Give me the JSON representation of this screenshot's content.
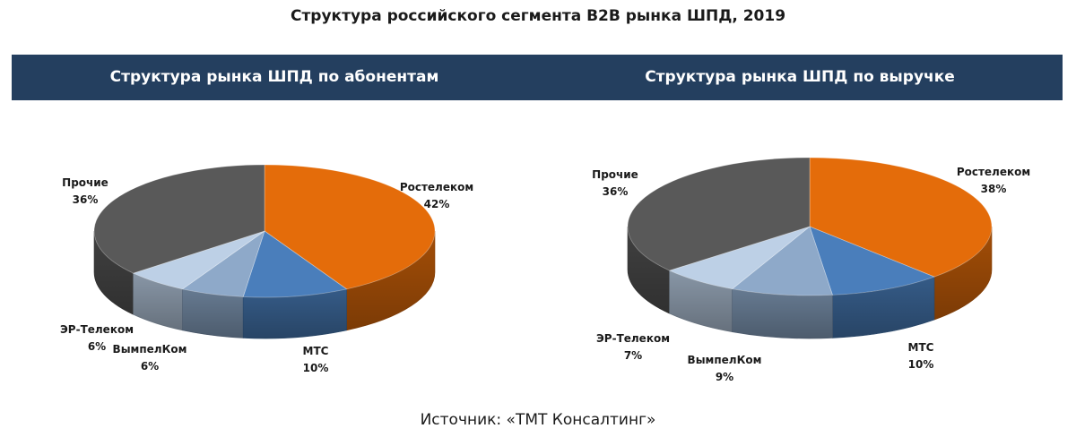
{
  "title": "Структура российского сегмента B2B рынка ШПД, 2019",
  "source": "Источник: «ТМТ Консалтинг»",
  "chart_data": [
    {
      "type": "pie",
      "title": "Структура рынка ШПД по абонентам",
      "categories": [
        "Ростелеком",
        "МТС",
        "ВымпелКом",
        "ЭР-Телеком",
        "Прочие"
      ],
      "values": [
        42,
        10,
        6,
        6,
        36
      ],
      "value_labels": [
        "42%",
        "10%",
        "6%",
        "6%",
        "36%"
      ],
      "colors": [
        "#e46c0a",
        "#4a7ebb",
        "#8ea9c9",
        "#bdd0e6",
        "#595959"
      ]
    },
    {
      "type": "pie",
      "title": "Структура рынка ШПД по выручке",
      "categories": [
        "Ростелеком",
        "МТС",
        "ВымпелКом",
        "ЭР-Телеком",
        "Прочие"
      ],
      "values": [
        38,
        10,
        9,
        7,
        36
      ],
      "value_labels": [
        "38%",
        "10%",
        "9%",
        "7%",
        "36%"
      ],
      "colors": [
        "#e46c0a",
        "#4a7ebb",
        "#8ea9c9",
        "#bdd0e6",
        "#595959"
      ]
    }
  ]
}
